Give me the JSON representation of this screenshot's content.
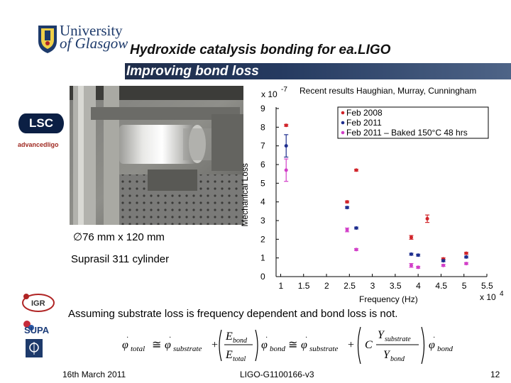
{
  "header": {
    "university_line1": "University",
    "university_line2": "of Glasgow",
    "title": "Hydroxide catalysis bonding for ea.LIGO",
    "subtitle": "Improving bond loss"
  },
  "logos": {
    "lsc": "LSC",
    "advligo": "advancedligo"
  },
  "photo": {
    "caption_size": "∅76 mm x 120 mm",
    "caption_material": "Suprasil 311 cylinder"
  },
  "chart_data": {
    "type": "scatter",
    "title": "Recent results Haughian, Murray, Cunningham",
    "y_multiplier": "x 10",
    "y_multiplier_exp": "-7",
    "x_multiplier": "x 10",
    "x_multiplier_exp": "4",
    "xlabel": "Frequency (Hz)",
    "ylabel": "Mechanical Loss",
    "xlim": [
      0.9,
      5.5
    ],
    "ylim": [
      0,
      9
    ],
    "x_ticks": [
      1,
      1.5,
      2,
      2.5,
      3,
      3.5,
      4,
      4.5,
      5,
      5.5
    ],
    "y_ticks": [
      0,
      1,
      2,
      3,
      4,
      5,
      6,
      7,
      8,
      9
    ],
    "legend_position": "top-right",
    "series": [
      {
        "name": "Feb 2008",
        "color": "#d1242a",
        "points": [
          {
            "x": 1.12,
            "y": 8.1,
            "err": 0.05
          },
          {
            "x": 2.45,
            "y": 4.0,
            "err": 0.05
          },
          {
            "x": 2.65,
            "y": 5.7,
            "err": 0.05
          },
          {
            "x": 3.85,
            "y": 2.1,
            "err": 0.1
          },
          {
            "x": 4.2,
            "y": 3.1,
            "err": 0.2
          },
          {
            "x": 4.55,
            "y": 0.95,
            "err": 0.05
          },
          {
            "x": 5.05,
            "y": 1.25,
            "err": 0.05
          }
        ]
      },
      {
        "name": "Feb 2011",
        "color": "#1f2f8f",
        "points": [
          {
            "x": 1.12,
            "y": 7.0,
            "err": 0.6
          },
          {
            "x": 2.45,
            "y": 3.7,
            "err": 0.05
          },
          {
            "x": 2.65,
            "y": 2.6,
            "err": 0.05
          },
          {
            "x": 3.85,
            "y": 1.2,
            "err": 0.05
          },
          {
            "x": 4.0,
            "y": 1.15,
            "err": 0.05
          },
          {
            "x": 4.55,
            "y": 0.85,
            "err": 0.05
          },
          {
            "x": 5.05,
            "y": 1.05,
            "err": 0.05
          }
        ]
      },
      {
        "name": "Feb 2011 – Baked 150°C 48 hrs",
        "color": "#d23fc8",
        "points": [
          {
            "x": 1.12,
            "y": 5.7,
            "err": 0.6
          },
          {
            "x": 2.45,
            "y": 2.5,
            "err": 0.1
          },
          {
            "x": 2.65,
            "y": 1.45,
            "err": 0.05
          },
          {
            "x": 3.85,
            "y": 0.6,
            "err": 0.1
          },
          {
            "x": 4.0,
            "y": 0.5,
            "err": 0.05
          },
          {
            "x": 4.55,
            "y": 0.6,
            "err": 0.05
          },
          {
            "x": 5.05,
            "y": 0.7,
            "err": 0.05
          }
        ]
      }
    ]
  },
  "bottom": {
    "assumption": "Assuming substrate loss is frequency dependent and bond loss is not.",
    "date": "16th March 2011",
    "doc_id": "LIGO-G1100166-v3",
    "page": "12"
  },
  "partner_logos": {
    "igr": "IGR",
    "supa": "SUPA"
  }
}
